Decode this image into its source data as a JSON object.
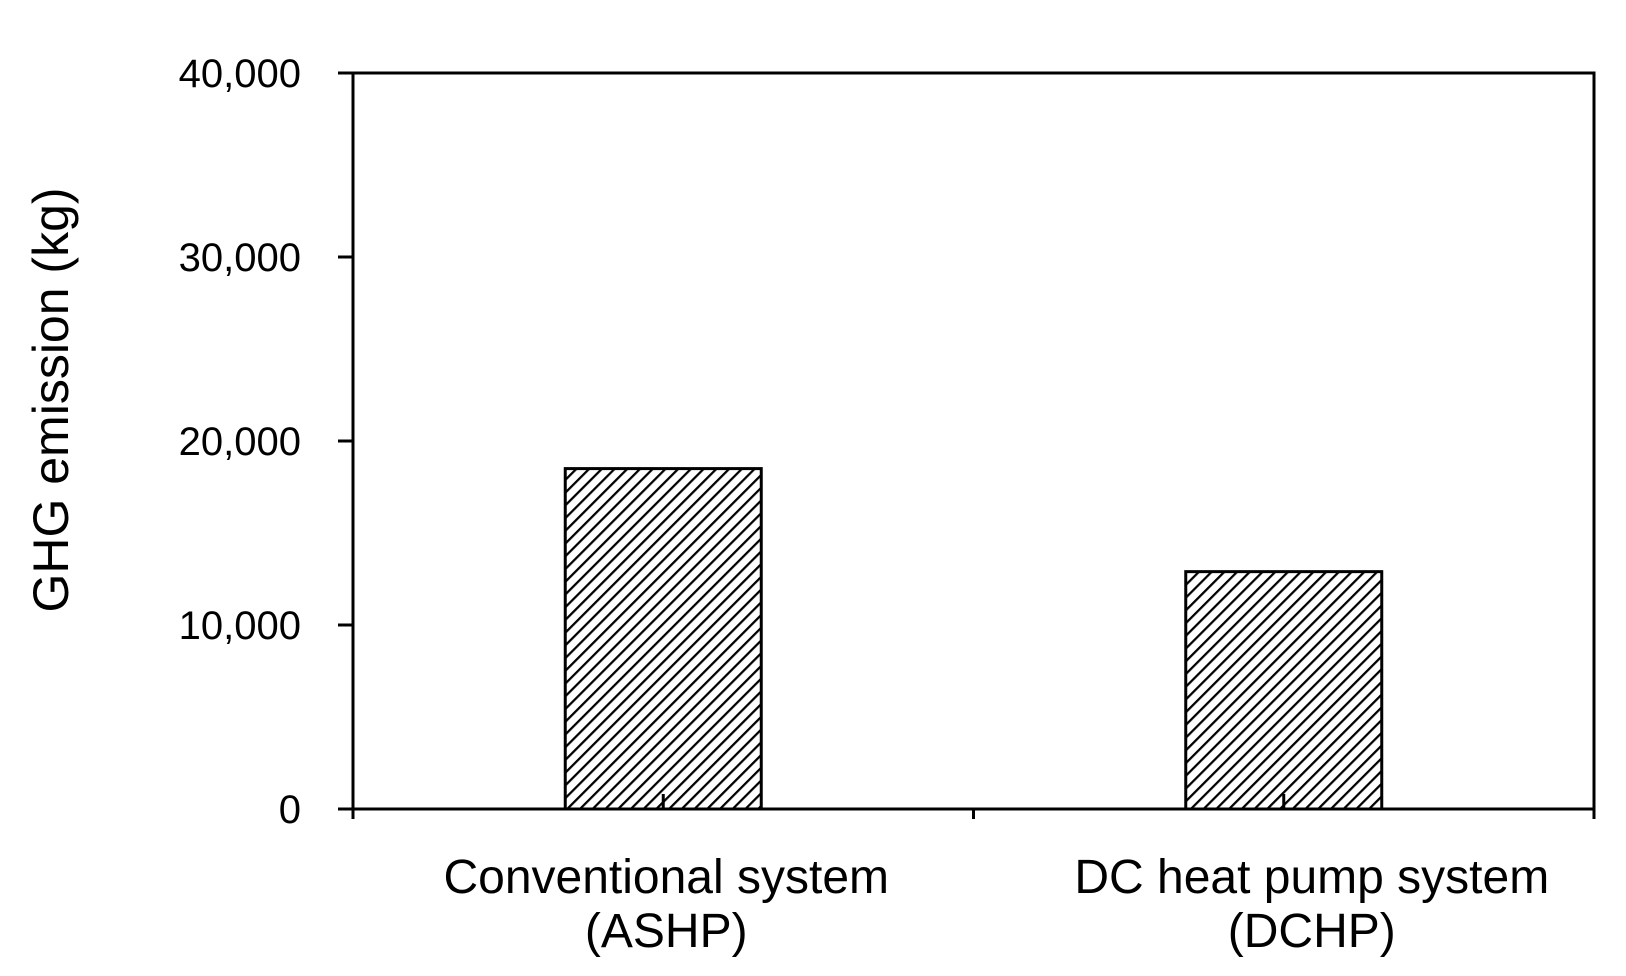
{
  "chart_data": {
    "type": "bar",
    "title": "",
    "xlabel": "",
    "ylabel": "GHG emission (kg)",
    "ylim": [
      0,
      40000
    ],
    "yticks": [
      0,
      10000,
      20000,
      30000,
      40000
    ],
    "ytick_labels": [
      "0",
      "10,000",
      "20,000",
      "30,000",
      "40,000"
    ],
    "categories": [
      {
        "line1": "Conventional system",
        "line2": "(ASHP)"
      },
      {
        "line1": "DC heat pump system",
        "line2": "(DCHP)"
      }
    ],
    "values": [
      18500,
      12900
    ],
    "grid": false,
    "legend": "none",
    "bar_style": "diagonal-hatch",
    "colors": {
      "bar_fill": "#ffffff",
      "hatch": "#000000",
      "axis": "#000000",
      "background": "#ffffff"
    }
  }
}
